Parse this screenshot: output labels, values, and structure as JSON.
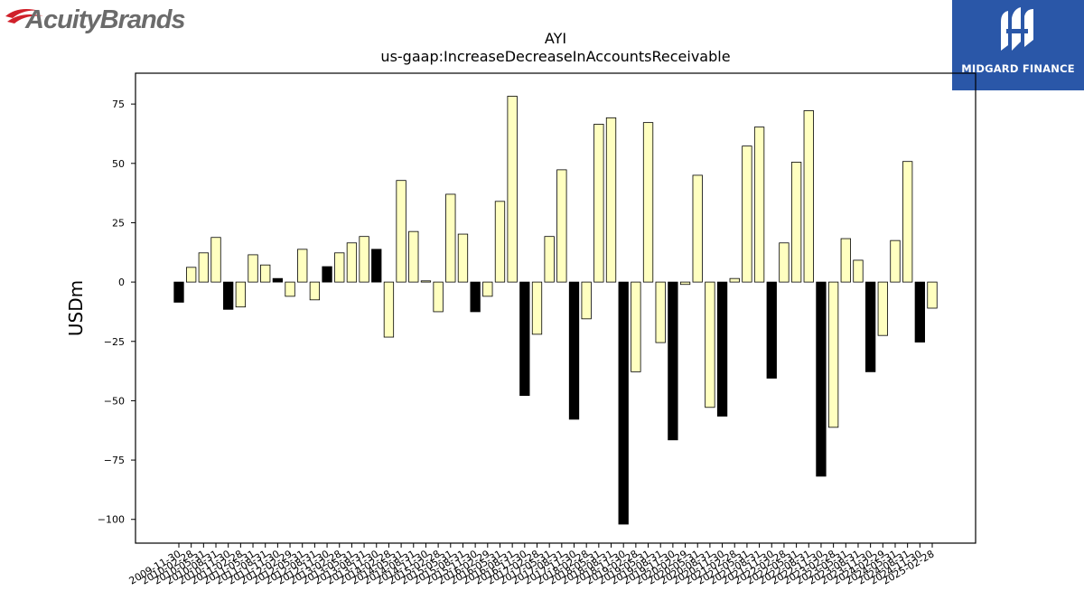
{
  "header": {
    "left_logo_text": "AcuityBrands",
    "right_logo_text": "MIDGARD FINANCE"
  },
  "colors": {
    "bar_negative": "#000000",
    "bar_fill": "#ffffc0",
    "bar_edge": "#000000",
    "brand_right_bg": "#2a57a8",
    "brand_left_red": "#d0202a",
    "brand_left_gray": "#6b6b6b"
  },
  "chart_data": {
    "type": "bar",
    "title": "AYI",
    "subtitle": "us-gaap:IncreaseDecreaseInAccountsReceivable",
    "ylabel": "USDm",
    "xlabel": "",
    "ylim": [
      -110,
      88
    ],
    "yticks": [
      -100,
      -75,
      -50,
      -25,
      0,
      25,
      50,
      75
    ],
    "categories": [
      "2009-11-30",
      "2010-02-28",
      "2010-05-31",
      "2010-08-31",
      "2010-11-30",
      "2011-02-28",
      "2011-05-31",
      "2011-08-31",
      "2011-11-30",
      "2012-02-29",
      "2012-05-31",
      "2012-08-31",
      "2012-11-30",
      "2013-02-28",
      "2013-05-31",
      "2013-08-31",
      "2013-11-30",
      "2014-02-28",
      "2014-05-31",
      "2014-08-31",
      "2014-11-30",
      "2015-02-28",
      "2015-05-31",
      "2015-08-31",
      "2015-11-30",
      "2016-02-29",
      "2016-05-31",
      "2016-08-31",
      "2016-11-30",
      "2017-02-28",
      "2017-05-31",
      "2017-08-31",
      "2017-11-30",
      "2018-02-28",
      "2018-05-31",
      "2018-08-31",
      "2018-11-30",
      "2019-02-28",
      "2019-05-31",
      "2019-08-31",
      "2019-11-30",
      "2020-02-29",
      "2020-05-31",
      "2020-08-31",
      "2020-11-30",
      "2021-02-28",
      "2021-05-31",
      "2021-08-31",
      "2021-11-30",
      "2022-02-28",
      "2022-05-31",
      "2022-08-31",
      "2022-11-30",
      "2023-02-28",
      "2023-05-31",
      "2023-08-31",
      "2023-11-30",
      "2024-02-29",
      "2024-05-31",
      "2024-08-31",
      "2024-11-30",
      "2025-02-28"
    ],
    "tick_labels_shown": [
      "2009-11-30",
      "2010-02-28",
      "2010-05-31",
      "2010-08-31",
      "2010-11-30",
      "2011-02-28",
      "2011-05-31",
      "2011-08-31",
      "2011-11-30",
      "2012-02-29",
      "2012-05-31",
      "2012-08-31",
      "2012-11-30",
      "2013-02-28",
      "2013-05-31",
      "2013-08-31",
      "2013-11-30",
      "2014-02-28",
      "2014-05-31",
      "2014-08-31",
      "2014-11-30",
      "2015-02-28",
      "2015-05-31",
      "2015-08-31",
      "2015-11-30",
      "2016-02-29",
      "2016-05-31",
      "2016-08-31",
      "2016-11-30",
      "2017-02-28",
      "2017-05-31",
      "2017-08-31",
      "2017-11-30",
      "2018-02-28",
      "2018-05-31",
      "2018-08-31",
      "2018-11-30",
      "2019-02-28",
      "2019-05-31",
      "2019-08-31",
      "2019-11-30",
      "2020-02-29",
      "2020-05-31",
      "2020-08-31",
      "2020-11-30",
      "2021-02-28",
      "2021-05-31",
      "2021-08-31",
      "2021-11-30",
      "2022-02-28",
      "2022-05-31",
      "2022-08-31",
      "2022-11-30",
      "2023-02-28",
      "2023-05-31",
      "2023-08-31",
      "2023-11-30",
      "2024-02-29",
      "2024-05-31",
      "2024-08-31",
      "2024-11-30",
      "2025-02-28"
    ],
    "values": [
      -8.5,
      6.2,
      12.3,
      18.8,
      -11.5,
      -10.5,
      11.5,
      7.2,
      1.5,
      -6.0,
      13.8,
      -7.5,
      6.5,
      12.3,
      16.5,
      19.2,
      13.8,
      -23.2,
      42.8,
      21.3,
      0.5,
      -12.5,
      37.0,
      20.2,
      -12.5,
      -6.0,
      34.0,
      78.3,
      -47.8,
      -22.0,
      19.2,
      47.3,
      -57.8,
      -15.5,
      66.5,
      69.2,
      -102.0,
      -37.8,
      67.2,
      -25.5,
      -66.5,
      -1.0,
      45.0,
      -52.8,
      -56.5,
      1.5,
      57.3,
      65.3,
      -40.5,
      16.5,
      50.5,
      72.2,
      -81.8,
      -61.2,
      18.3,
      9.2,
      -37.8,
      -22.5,
      17.5,
      50.8,
      -25.3,
      -11.0
    ],
    "fiscal_year_end_black": [
      true,
      false,
      false,
      false,
      true,
      false,
      false,
      false,
      true,
      false,
      false,
      false,
      true,
      false,
      false,
      false,
      true,
      false,
      false,
      false,
      false,
      false,
      false,
      false,
      true,
      false,
      false,
      false,
      true,
      false,
      false,
      false,
      true,
      false,
      false,
      false,
      true,
      false,
      false,
      false,
      true,
      false,
      false,
      false,
      true,
      false,
      false,
      false,
      true,
      false,
      false,
      false,
      true,
      false,
      false,
      false,
      true,
      false,
      false,
      false,
      true,
      false
    ],
    "grid": false,
    "legend": "none"
  }
}
